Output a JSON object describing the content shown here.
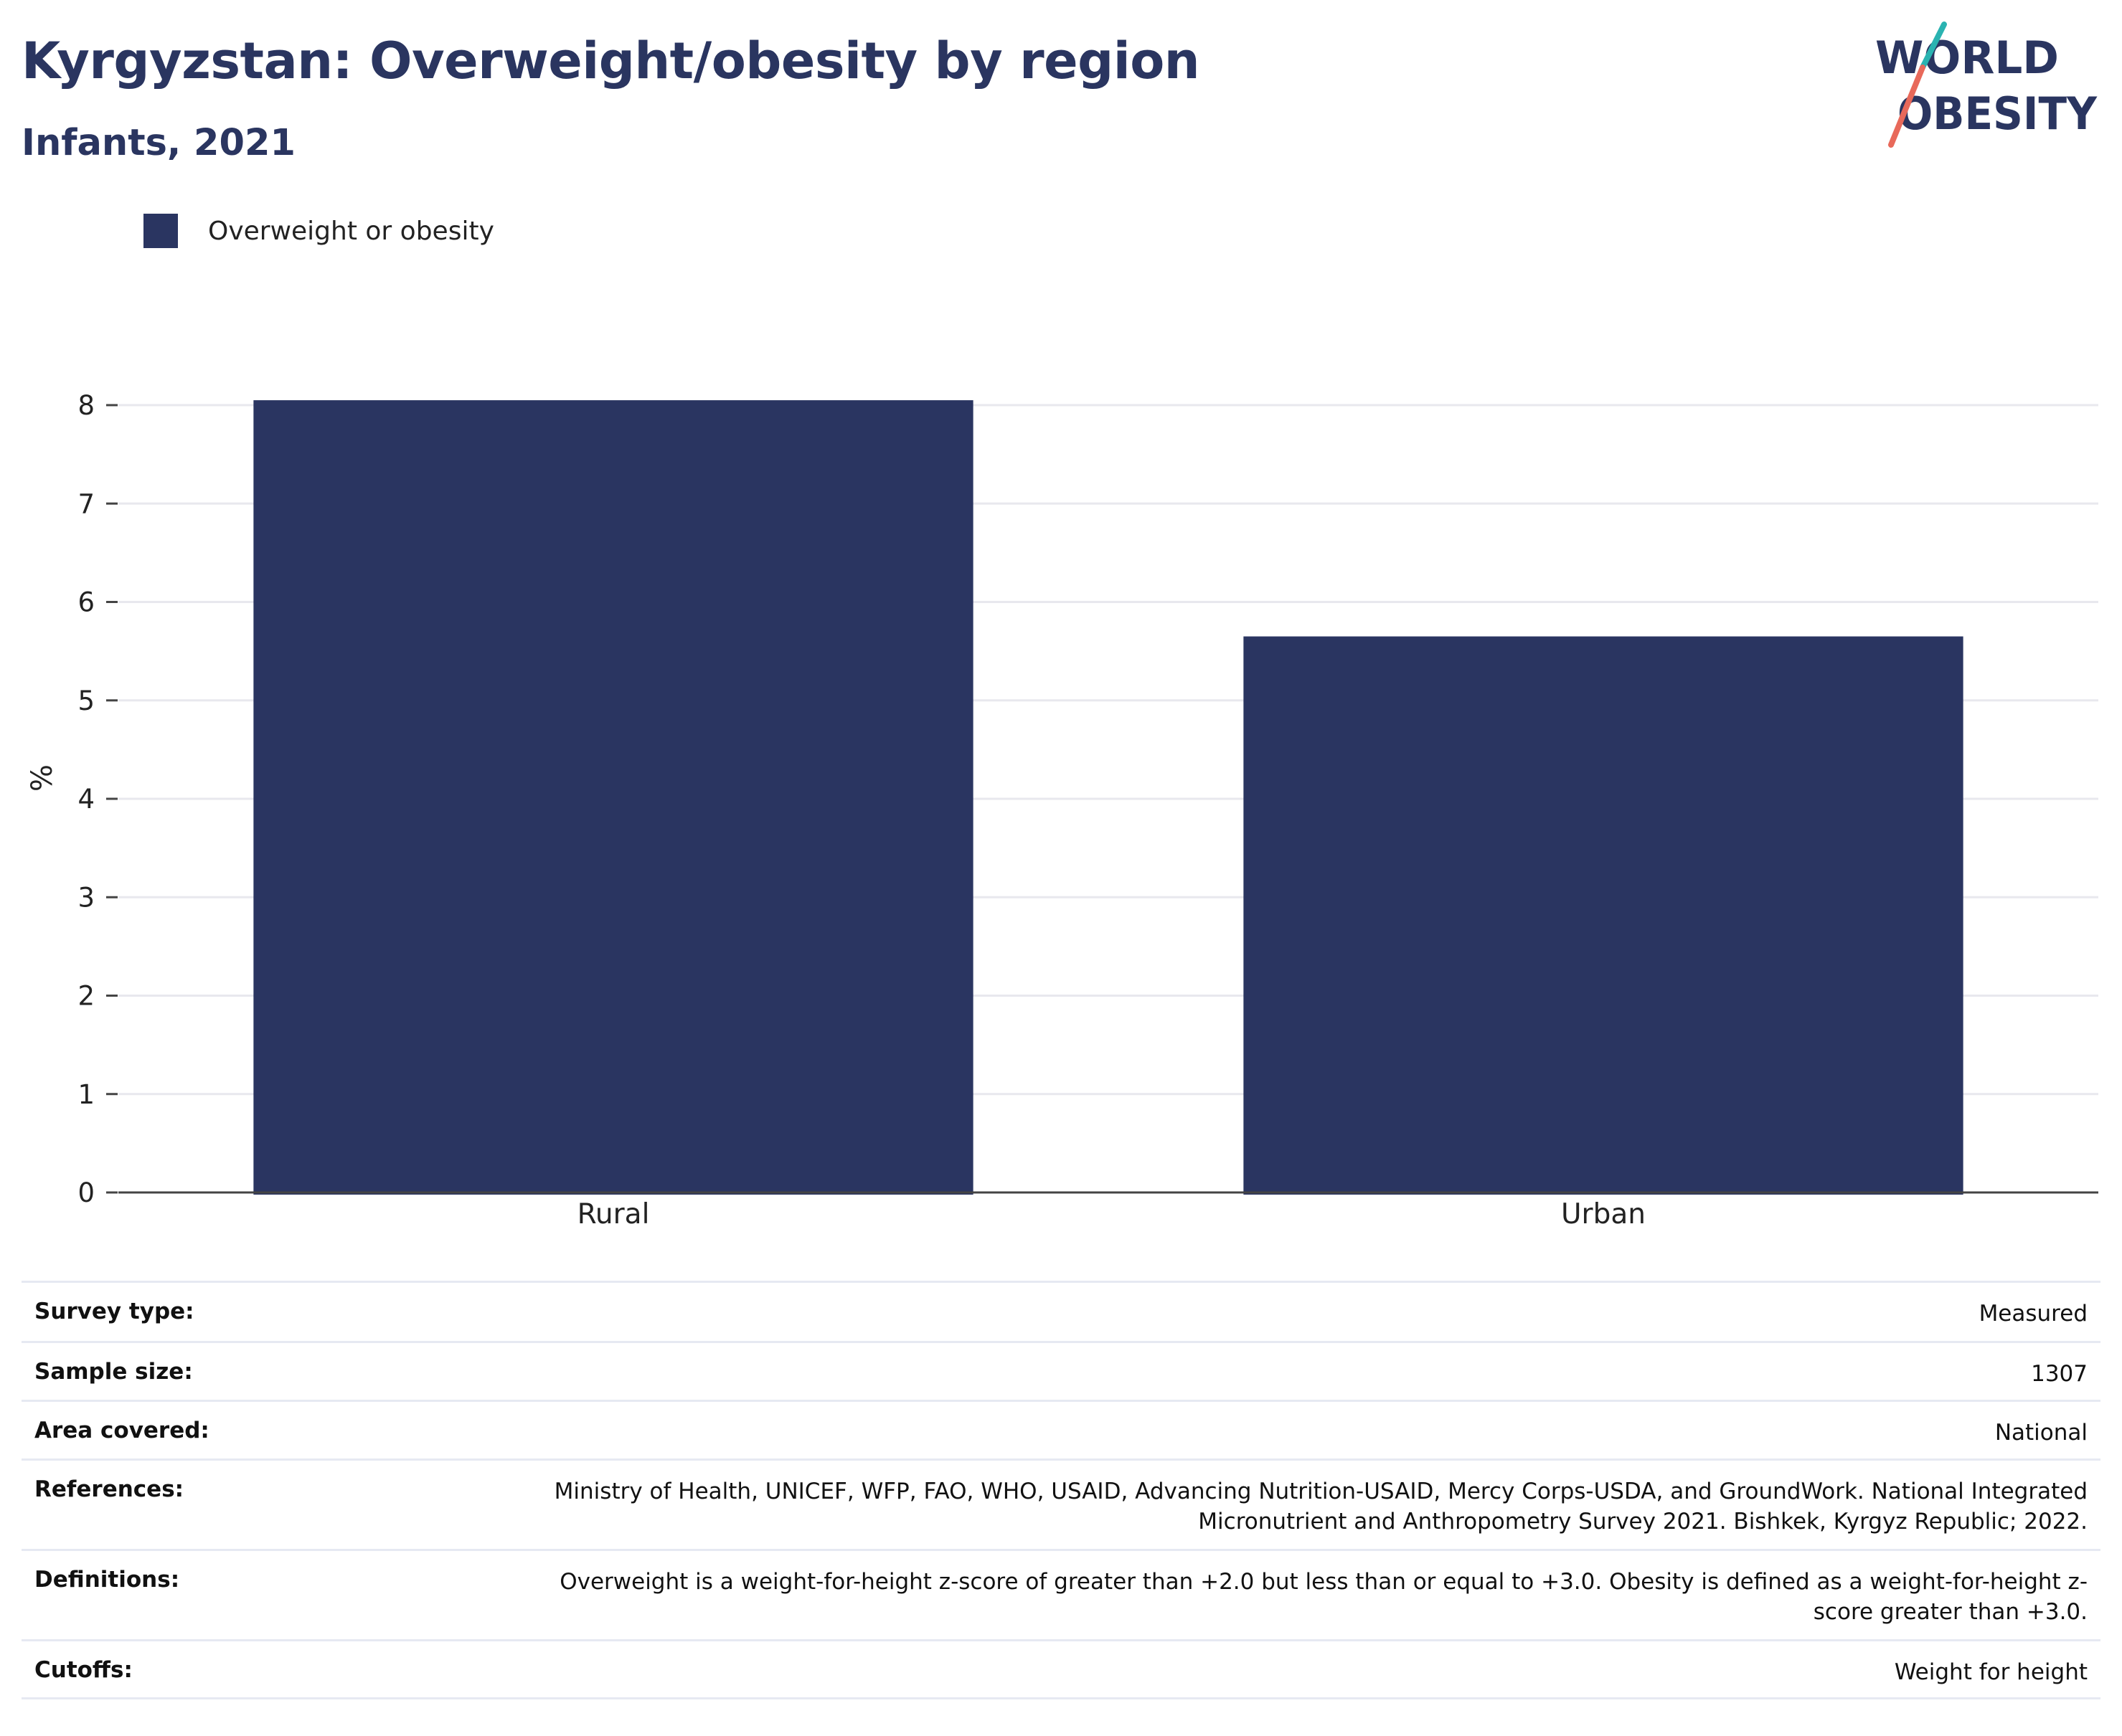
{
  "header": {
    "title": "Kyrgyzstan: Overweight/obesity by region",
    "subtitle": "Infants, 2021"
  },
  "logo": {
    "line1": "WORLD",
    "line2": "OBESITY"
  },
  "colors": {
    "bar": "#2a3561",
    "title": "#2a3560",
    "logo_teal": "#2ab3b1",
    "logo_coral": "#e8695a"
  },
  "legend": {
    "label": "Overweight or obesity"
  },
  "chart_data": {
    "type": "bar",
    "categories": [
      "Rural",
      "Urban"
    ],
    "series": [
      {
        "name": "Overweight or obesity",
        "values": [
          8.05,
          5.65
        ]
      }
    ],
    "ylabel": "%",
    "xlabel": "",
    "ylim": [
      0,
      8
    ],
    "yticks": [
      0,
      1,
      2,
      3,
      4,
      5,
      6,
      7,
      8
    ],
    "grid": true,
    "legend_position": "top-left"
  },
  "meta": [
    {
      "key": "Survey type:",
      "value": "Measured"
    },
    {
      "key": "Sample size:",
      "value": "1307"
    },
    {
      "key": "Area covered:",
      "value": "National"
    },
    {
      "key": "References:",
      "value": "Ministry of Health, UNICEF, WFP, FAO, WHO, USAID, Advancing Nutrition-USAID, Mercy Corps-USDA, and GroundWork. National Integrated Micronutrient and Anthropometry Survey 2021. Bishkek, Kyrgyz Republic; 2022."
    },
    {
      "key": "Definitions:",
      "value": "Overweight is a weight-for-height z-score of greater than +2.0 but less than or equal to +3.0. Obesity is defined as a weight-for-height z-score greater than +3.0."
    },
    {
      "key": "Cutoffs:",
      "value": "Weight for height"
    }
  ]
}
